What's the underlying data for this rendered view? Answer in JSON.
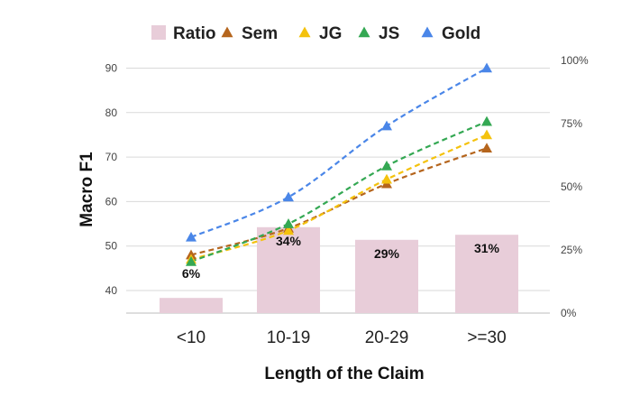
{
  "chart_data": {
    "type": "bar+line",
    "categories": [
      "<10",
      "10-19",
      "20-29",
      ">=30"
    ],
    "bars": {
      "name": "Ratio",
      "values": [
        6,
        34,
        29,
        31
      ],
      "labels": [
        "6%",
        "34%",
        "29%",
        "31%"
      ],
      "color": "#e8cdd9"
    },
    "series": [
      {
        "name": "Sem",
        "values": [
          48,
          54,
          64,
          72
        ],
        "color": "#b5651d"
      },
      {
        "name": "JG",
        "values": [
          47,
          53.5,
          65,
          75
        ],
        "color": "#f4c20d"
      },
      {
        "name": "JS",
        "values": [
          46.5,
          55,
          68,
          78
        ],
        "color": "#34a853"
      },
      {
        "name": "Gold",
        "values": [
          52,
          61,
          77,
          90
        ],
        "color": "#4a86e8"
      }
    ],
    "ylabel": "Macro  F1",
    "xlabel": "Length of the Claim",
    "ylim": [
      35,
      95
    ],
    "yticks": [
      "40",
      "50",
      "60",
      "70",
      "80",
      "90"
    ],
    "y2lim": [
      0,
      100
    ],
    "y2ticks": [
      "0%",
      "25%",
      "50%",
      "75%",
      "100%"
    ],
    "grid": true,
    "legend_position": "top"
  }
}
